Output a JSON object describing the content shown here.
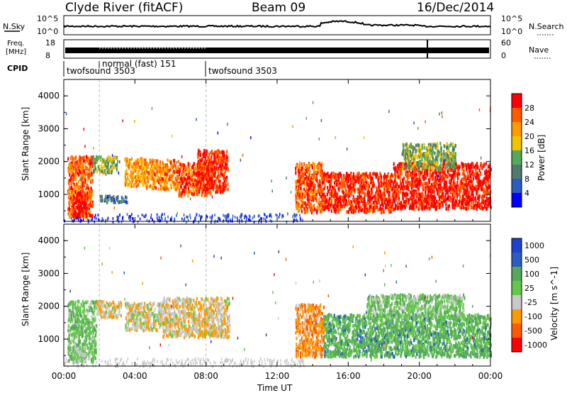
{
  "header": {
    "station": "Clyde River (fitACF)",
    "beam": "Beam 09",
    "date": "16/Dec/2014"
  },
  "top_panels": {
    "nsky_label": "N.Sky",
    "nsky_ticks": [
      "10^5",
      "10^0"
    ],
    "nsearch_label": "N.Search",
    "nsearch_ticks": [
      "10^5",
      "10^0"
    ],
    "freq_label_1": "Freq.",
    "freq_label_2": "[MHz]",
    "freq_ticks": [
      "18",
      "8"
    ],
    "nave_label": "Nave",
    "nave_ticks": [
      "60",
      "0"
    ],
    "cpid_label": "CPID",
    "cpid_segments": [
      {
        "label": "twofsound 3503",
        "start_hour": 0
      },
      {
        "label": "normal (fast) 151",
        "start_hour": 2
      },
      {
        "label": "twofsound 3503",
        "start_hour": 8
      }
    ]
  },
  "time_axis": {
    "label": "Time UT",
    "ticks": [
      "00:00",
      "04:00",
      "08:00",
      "12:00",
      "16:00",
      "20:00",
      "00:00"
    ],
    "tick_hours": [
      0,
      4,
      8,
      12,
      16,
      20,
      24
    ]
  },
  "colors": {
    "power_scale": [
      "#0000ff",
      "#2b5cc0",
      "#4f7a6d",
      "#56a85a",
      "#f0c400",
      "#ff9a00",
      "#ff5a00",
      "#ff0000"
    ],
    "velocity_scale": [
      "#ff0000",
      "#ff5a00",
      "#ff9a00",
      "#c8c8c8",
      "#63c84a",
      "#56a85a",
      "#2b5cc0",
      "#2040d0"
    ],
    "ground_scatter": "#c8c8c8"
  },
  "chart_data": [
    {
      "type": "heatmap",
      "title": "",
      "xlabel": "",
      "ylabel": "Slant Range [km]",
      "ytick_labels": [
        "1000",
        "2000",
        "3000",
        "4000"
      ],
      "ylim": [
        180,
        4500
      ],
      "xlim_hours": [
        0,
        24
      ],
      "colorbar": {
        "label": "Power [dB]",
        "ticks": [
          "4",
          "8",
          "12",
          "16",
          "20",
          "24",
          "28"
        ],
        "range": [
          0,
          30
        ]
      },
      "regions": [
        {
          "t0": 0.2,
          "t1": 1.6,
          "r0": 350,
          "r1": 2200,
          "value": 24
        },
        {
          "t0": 0.5,
          "t1": 1.3,
          "r0": 400,
          "r1": 1100,
          "value": 29
        },
        {
          "t0": 1.6,
          "t1": 3.0,
          "r0": 1700,
          "r1": 2200,
          "value": 14
        },
        {
          "t0": 2.0,
          "t1": 3.6,
          "r0": 800,
          "r1": 1000,
          "value": 8
        },
        {
          "t0": 3.4,
          "t1": 4.5,
          "r0": 1300,
          "r1": 2150,
          "value": 20
        },
        {
          "t0": 4.5,
          "t1": 6.4,
          "r0": 1200,
          "r1": 2100,
          "value": 22
        },
        {
          "t0": 6.4,
          "t1": 8.3,
          "r0": 1000,
          "r1": 2000,
          "value": 25
        },
        {
          "t0": 7.5,
          "t1": 9.2,
          "r0": 1100,
          "r1": 2400,
          "value": 27
        },
        {
          "t0": 13.0,
          "t1": 14.5,
          "r0": 500,
          "r1": 2000,
          "value": 24
        },
        {
          "t0": 14.5,
          "t1": 18.5,
          "r0": 500,
          "r1": 1700,
          "value": 27
        },
        {
          "t0": 18.5,
          "t1": 24.0,
          "r0": 600,
          "r1": 2000,
          "value": 28
        },
        {
          "t0": 19.0,
          "t1": 22.0,
          "r0": 1800,
          "r1": 2600,
          "value": 14
        }
      ]
    },
    {
      "type": "heatmap",
      "title": "",
      "xlabel": "Time UT",
      "ylabel": "Slant Range [km]",
      "ytick_labels": [
        "1000",
        "2000",
        "3000",
        "4000"
      ],
      "ylim": [
        180,
        4500
      ],
      "xlim_hours": [
        0,
        24
      ],
      "colorbar": {
        "label": "Velocity [m s^-1]",
        "ticks": [
          "1000",
          "500",
          "100",
          "25",
          "-25",
          "-100",
          "-500",
          "-1000"
        ],
        "range": [
          -1000,
          1000
        ]
      },
      "regions": [
        {
          "t0": 0.2,
          "t1": 1.8,
          "r0": 350,
          "r1": 2200,
          "value": 150
        },
        {
          "t0": 0.4,
          "t1": 1.2,
          "r0": 350,
          "r1": 800,
          "value": 0
        },
        {
          "t0": 1.8,
          "t1": 3.2,
          "r0": 1700,
          "r1": 2200,
          "value": -200
        },
        {
          "t0": 3.4,
          "t1": 5.5,
          "r0": 1300,
          "r1": 2150,
          "value": -150
        },
        {
          "t0": 5.5,
          "t1": 9.3,
          "r0": 1100,
          "r1": 2300,
          "value": -200
        },
        {
          "t0": 13.0,
          "t1": 14.6,
          "r0": 500,
          "r1": 2100,
          "value": -400
        },
        {
          "t0": 14.6,
          "t1": 24.0,
          "r0": 500,
          "r1": 1800,
          "value": 300
        },
        {
          "t0": 17.0,
          "t1": 22.5,
          "r0": 1700,
          "r1": 2400,
          "value": 120
        }
      ]
    }
  ]
}
